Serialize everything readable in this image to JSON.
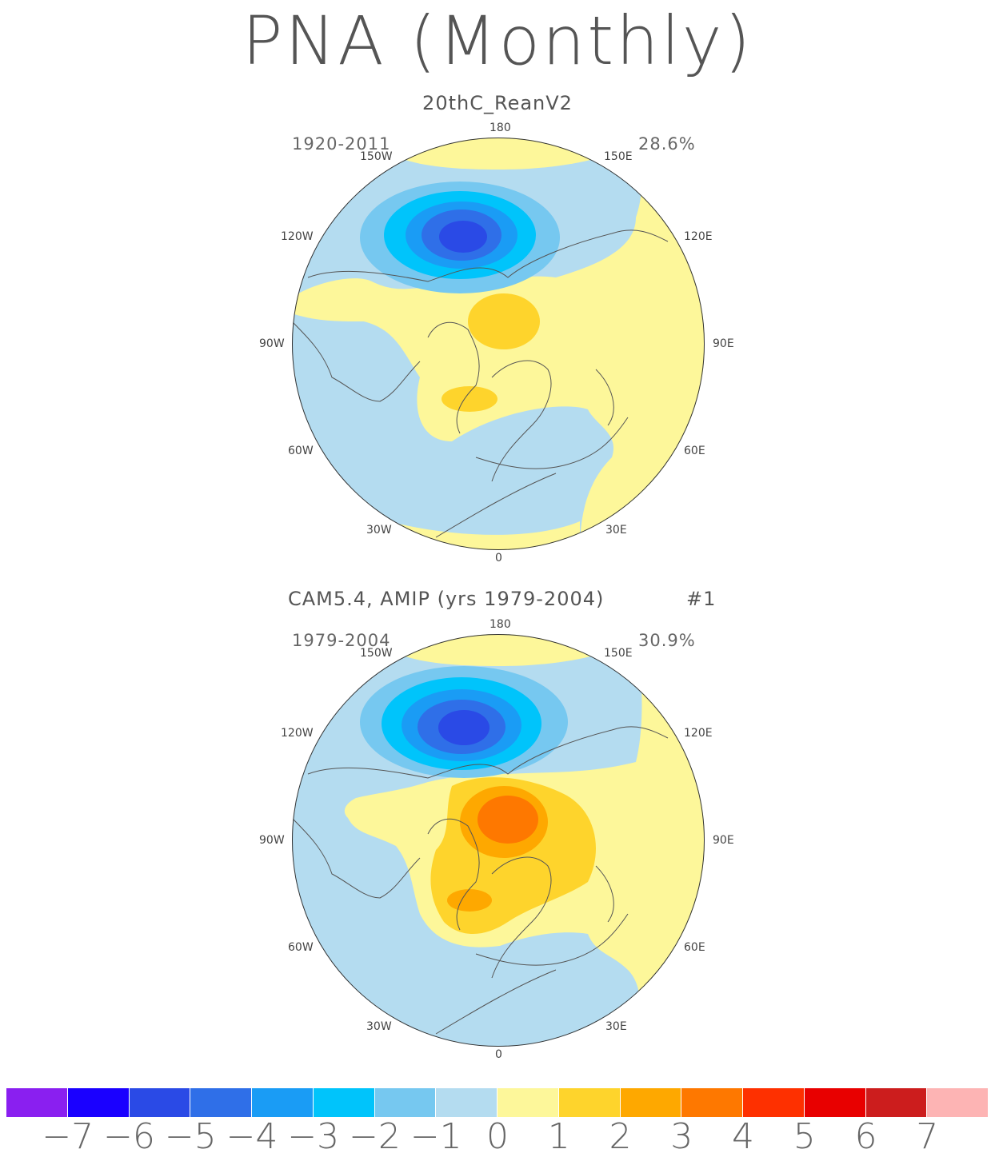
{
  "title": "PNA (Monthly)",
  "panels": [
    {
      "subtitle": "20thC_ReanV2",
      "period": "1920-2011",
      "variance": "28.6%",
      "lon_labels": {
        "n": "180",
        "s": "0",
        "w90": "90W",
        "e90": "90E",
        "w120": "120W",
        "e120": "120E",
        "w150": "150W",
        "e150": "150E",
        "w60": "60W",
        "e60": "60E",
        "w30": "30W",
        "e30": "30E"
      },
      "features": {
        "low_center_anomaly": -6,
        "high_center_anomaly": 2
      }
    },
    {
      "subtitle": "CAM5.4, AMIP (yrs 1979-2004)",
      "ensemble_member": "#1",
      "period": "1979-2004",
      "variance": "30.9%",
      "lon_labels": {
        "n": "180",
        "s": "0",
        "w90": "90W",
        "e90": "90E",
        "w120": "120W",
        "e120": "120E",
        "w150": "150W",
        "e150": "150E",
        "w60": "60W",
        "e60": "60E",
        "w30": "30W",
        "e30": "30E"
      },
      "features": {
        "low_center_anomaly": -6,
        "high_center_anomaly": 3
      }
    }
  ],
  "colorbar": {
    "colors": [
      "#8a1ff0",
      "#1a00ff",
      "#2a4ae6",
      "#2f6fe8",
      "#1a9cf5",
      "#00c4fb",
      "#76c8f0",
      "#b4dcf0",
      "#fdf79a",
      "#fed42c",
      "#fea800",
      "#fe7800",
      "#fe3000",
      "#e80000",
      "#cc1d1d",
      "#fdb4b4"
    ],
    "labels": [
      "-7",
      "-6",
      "-5",
      "-4",
      "-3",
      "-2",
      "-1",
      "0",
      "1",
      "2",
      "3",
      "4",
      "5",
      "6",
      "7"
    ]
  }
}
